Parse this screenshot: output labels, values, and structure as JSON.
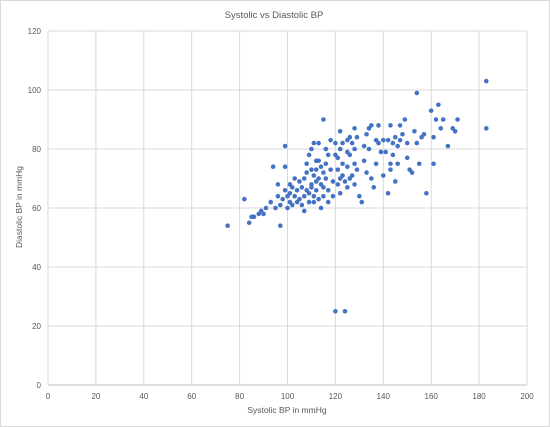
{
  "chart_data": {
    "type": "scatter",
    "title": "Systolic vs Diastolic BP",
    "xlabel": "Systolic BP in mmHg",
    "ylabel": "Diastolic BP in mmHg",
    "xlim": [
      0,
      200
    ],
    "ylim": [
      0,
      120
    ],
    "xticks": [
      0,
      20,
      40,
      60,
      80,
      100,
      120,
      140,
      160,
      180,
      200
    ],
    "yticks": [
      0,
      20,
      40,
      60,
      80,
      100,
      120
    ],
    "grid": true,
    "legend": "none",
    "marker_color": "#4472c4",
    "points": [
      [
        75,
        54
      ],
      [
        82,
        63
      ],
      [
        84,
        55
      ],
      [
        85,
        57
      ],
      [
        86,
        57
      ],
      [
        88,
        58
      ],
      [
        89,
        59
      ],
      [
        90,
        58
      ],
      [
        91,
        60
      ],
      [
        93,
        62
      ],
      [
        94,
        74
      ],
      [
        95,
        60
      ],
      [
        96,
        68
      ],
      [
        96,
        64
      ],
      [
        97,
        54
      ],
      [
        97,
        61
      ],
      [
        98,
        63
      ],
      [
        99,
        74
      ],
      [
        99,
        81
      ],
      [
        99,
        66
      ],
      [
        100,
        60
      ],
      [
        100,
        64
      ],
      [
        101,
        65
      ],
      [
        101,
        68
      ],
      [
        101,
        62
      ],
      [
        102,
        67
      ],
      [
        102,
        61
      ],
      [
        103,
        64
      ],
      [
        103,
        70
      ],
      [
        104,
        66
      ],
      [
        104,
        62
      ],
      [
        105,
        63
      ],
      [
        105,
        69
      ],
      [
        106,
        61
      ],
      [
        106,
        67
      ],
      [
        107,
        70
      ],
      [
        107,
        64
      ],
      [
        107,
        59
      ],
      [
        108,
        75
      ],
      [
        108,
        66
      ],
      [
        108,
        72
      ],
      [
        109,
        78
      ],
      [
        109,
        62
      ],
      [
        109,
        65
      ],
      [
        110,
        80
      ],
      [
        110,
        68
      ],
      [
        110,
        73
      ],
      [
        110,
        67
      ],
      [
        111,
        82
      ],
      [
        111,
        71
      ],
      [
        111,
        62
      ],
      [
        111,
        64
      ],
      [
        112,
        76
      ],
      [
        112,
        73
      ],
      [
        112,
        69
      ],
      [
        112,
        66
      ],
      [
        113,
        82
      ],
      [
        113,
        76
      ],
      [
        113,
        70
      ],
      [
        113,
        63
      ],
      [
        114,
        74
      ],
      [
        114,
        68
      ],
      [
        114,
        60
      ],
      [
        115,
        90
      ],
      [
        115,
        72
      ],
      [
        115,
        67
      ],
      [
        115,
        64
      ],
      [
        116,
        80
      ],
      [
        116,
        75
      ],
      [
        116,
        70
      ],
      [
        117,
        78
      ],
      [
        117,
        66
      ],
      [
        117,
        62
      ],
      [
        118,
        83
      ],
      [
        118,
        73
      ],
      [
        119,
        69
      ],
      [
        119,
        64
      ],
      [
        120,
        82
      ],
      [
        120,
        78
      ],
      [
        120,
        25
      ],
      [
        121,
        77
      ],
      [
        121,
        73
      ],
      [
        121,
        68
      ],
      [
        122,
        86
      ],
      [
        122,
        80
      ],
      [
        122,
        70
      ],
      [
        122,
        65
      ],
      [
        123,
        82
      ],
      [
        123,
        75
      ],
      [
        123,
        71
      ],
      [
        124,
        69
      ],
      [
        124,
        25
      ],
      [
        125,
        83
      ],
      [
        125,
        79
      ],
      [
        125,
        74
      ],
      [
        125,
        67
      ],
      [
        126,
        84
      ],
      [
        126,
        78
      ],
      [
        126,
        70
      ],
      [
        127,
        82
      ],
      [
        127,
        71
      ],
      [
        128,
        87
      ],
      [
        128,
        80
      ],
      [
        128,
        75
      ],
      [
        128,
        68
      ],
      [
        129,
        84
      ],
      [
        129,
        73
      ],
      [
        130,
        64
      ],
      [
        131,
        62
      ],
      [
        132,
        81
      ],
      [
        132,
        76
      ],
      [
        133,
        85
      ],
      [
        133,
        72
      ],
      [
        134,
        87
      ],
      [
        134,
        80
      ],
      [
        135,
        88
      ],
      [
        135,
        70
      ],
      [
        136,
        67
      ],
      [
        137,
        83
      ],
      [
        137,
        75
      ],
      [
        138,
        88
      ],
      [
        138,
        82
      ],
      [
        139,
        79
      ],
      [
        140,
        83
      ],
      [
        140,
        71
      ],
      [
        141,
        79
      ],
      [
        142,
        83
      ],
      [
        142,
        65
      ],
      [
        143,
        88
      ],
      [
        143,
        75
      ],
      [
        143,
        73
      ],
      [
        144,
        82
      ],
      [
        144,
        78
      ],
      [
        145,
        84
      ],
      [
        145,
        69
      ],
      [
        146,
        81
      ],
      [
        146,
        75
      ],
      [
        147,
        88
      ],
      [
        147,
        83
      ],
      [
        148,
        85
      ],
      [
        149,
        90
      ],
      [
        150,
        82
      ],
      [
        150,
        77
      ],
      [
        151,
        73
      ],
      [
        152,
        72
      ],
      [
        153,
        86
      ],
      [
        154,
        99
      ],
      [
        154,
        82
      ],
      [
        155,
        75
      ],
      [
        156,
        84
      ],
      [
        157,
        85
      ],
      [
        158,
        65
      ],
      [
        160,
        93
      ],
      [
        161,
        84
      ],
      [
        161,
        75
      ],
      [
        162,
        90
      ],
      [
        163,
        95
      ],
      [
        164,
        87
      ],
      [
        165,
        90
      ],
      [
        167,
        81
      ],
      [
        169,
        87
      ],
      [
        170,
        86
      ],
      [
        171,
        90
      ],
      [
        183,
        103
      ],
      [
        183,
        87
      ]
    ]
  }
}
